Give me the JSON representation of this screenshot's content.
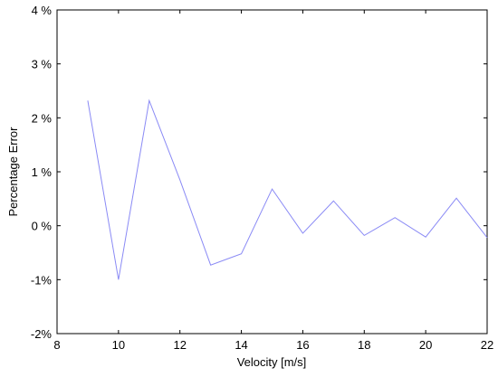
{
  "chart_data": {
    "type": "line",
    "xlabel": "Velocity [m/s]",
    "ylabel": "Percentage Error",
    "xlim": [
      8,
      22
    ],
    "ylim": [
      -2,
      4
    ],
    "x_ticks": [
      8,
      10,
      12,
      14,
      16,
      18,
      20,
      22
    ],
    "x_tick_labels": [
      "8",
      "10",
      "12",
      "14",
      "16",
      "18",
      "20",
      "22"
    ],
    "y_ticks": [
      -2,
      -1,
      0,
      1,
      2,
      3,
      4
    ],
    "y_tick_labels": [
      "-2%",
      "-1%",
      "0 %",
      "1 %",
      "2 %",
      "3 %",
      "4 %"
    ],
    "grid": false,
    "series": [
      {
        "color": "#8a8af5",
        "x": [
          9,
          10,
          11,
          12,
          13,
          14,
          15,
          16,
          17,
          18,
          19,
          20,
          21,
          22
        ],
        "y": [
          2.32,
          -1.0,
          2.32,
          0.85,
          -0.73,
          -0.52,
          0.68,
          -0.14,
          0.46,
          -0.18,
          0.15,
          -0.21,
          0.51,
          -0.22
        ]
      }
    ]
  }
}
